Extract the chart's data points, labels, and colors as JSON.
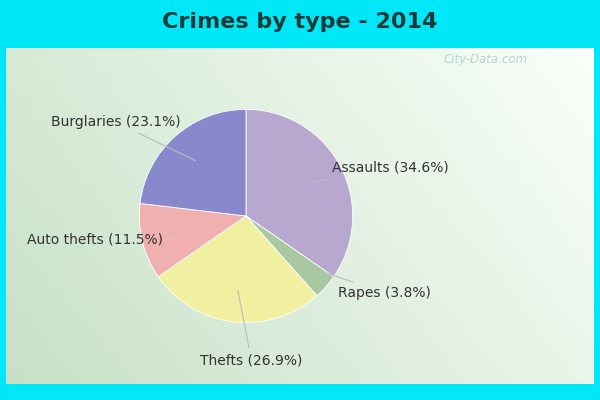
{
  "title": "Crimes by type - 2014",
  "values": [
    34.6,
    3.8,
    26.9,
    11.5,
    23.1
  ],
  "colors": [
    "#b8a8d0",
    "#a8c8a0",
    "#f0f0a0",
    "#f0b0b0",
    "#8888cc"
  ],
  "bg_cyan": "#00e8f8",
  "bg_chart": "#d8ece0",
  "title_fontsize": 16,
  "label_fontsize": 10,
  "watermark": "City-Data.com",
  "label_texts": [
    "Assaults (34.6%)",
    "Rapes (3.8%)",
    "Thefts (26.9%)",
    "Auto thefts (11.5%)",
    "Burglaries (23.1%)"
  ],
  "startangle": 90,
  "aspect_ratio": 0.78
}
